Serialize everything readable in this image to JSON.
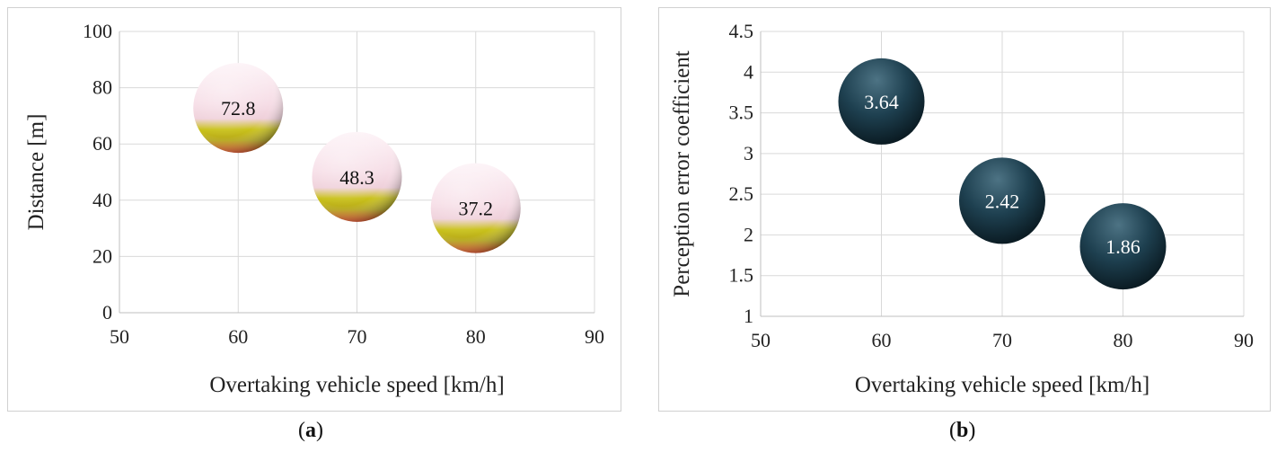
{
  "chart_data": [
    {
      "type": "scatter",
      "xlabel": "Overtaking vehicle speed [km/h]",
      "ylabel": "Distance [m]",
      "xlim": [
        50,
        90
      ],
      "ylim": [
        0,
        100
      ],
      "xticks": [
        "50",
        "60",
        "70",
        "80",
        "90"
      ],
      "yticks": [
        "0",
        "20",
        "40",
        "60",
        "80",
        "100"
      ],
      "grid": true,
      "series": [
        {
          "points": [
            {
              "x": 60,
              "y": 72.8,
              "label": "72.8"
            },
            {
              "x": 70,
              "y": 48.3,
              "label": "48.3"
            },
            {
              "x": 80,
              "y": 37.2,
              "label": "37.2"
            }
          ]
        }
      ],
      "colors": {
        "bubble": "#f6dde6",
        "bubble_base": "#e04a20",
        "bubble_band": "#c9c21a",
        "label": "#111111"
      }
    },
    {
      "type": "scatter",
      "xlabel": "Overtaking vehicle speed [km/h]",
      "ylabel": "Perception error coefficient",
      "xlim": [
        50,
        90
      ],
      "ylim": [
        1,
        4.5
      ],
      "xticks": [
        "50",
        "60",
        "70",
        "80",
        "90"
      ],
      "yticks": [
        "1",
        "1.5",
        "2",
        "2.5",
        "3",
        "3.5",
        "4",
        "4.5"
      ],
      "grid": true,
      "series": [
        {
          "points": [
            {
              "x": 60,
              "y": 3.64,
              "label": "3.64"
            },
            {
              "x": 70,
              "y": 2.42,
              "label": "2.42"
            },
            {
              "x": 80,
              "y": 1.86,
              "label": "1.86"
            }
          ]
        }
      ],
      "colors": {
        "bubble": "#1e4050",
        "bubble_highlight": "#4d7384",
        "label": "#ffffff"
      }
    }
  ],
  "captions": {
    "a_open": "(",
    "a_letter": "a",
    "a_close": ")",
    "b_open": "(",
    "b_letter": "b",
    "b_close": ")"
  }
}
